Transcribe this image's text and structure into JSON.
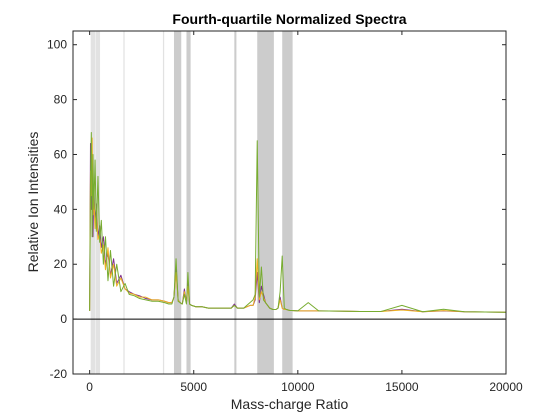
{
  "chart_data": {
    "type": "line",
    "title": "Fourth-quartile Normalized Spectra",
    "xlabel": "Mass-charge Ratio",
    "ylabel": "Relative Ion Intensities",
    "xlim": [
      -800,
      20000
    ],
    "ylim": [
      -20,
      105
    ],
    "xticks": [
      0,
      5000,
      10000,
      15000,
      20000
    ],
    "xtick_labels": [
      "0",
      "5000",
      "10000",
      "15000",
      "20000"
    ],
    "yticks": [
      -20,
      0,
      20,
      40,
      60,
      80,
      100
    ],
    "ytick_labels": [
      "-20",
      "0",
      "20",
      "40",
      "60",
      "80",
      "100"
    ],
    "grid": false,
    "zero_line": 0,
    "colors": {
      "axes": "#262626",
      "band_dark": "#cccccc",
      "band_light": "#e2e2e2"
    },
    "highlight_bands": [
      {
        "start": 50,
        "end": 270,
        "shade": "light"
      },
      {
        "start": 290,
        "end": 500,
        "shade": "light"
      },
      {
        "start": 1620,
        "end": 1680,
        "shade": "light"
      },
      {
        "start": 3520,
        "end": 3580,
        "shade": "light"
      },
      {
        "start": 4050,
        "end": 4400,
        "shade": "dark"
      },
      {
        "start": 4650,
        "end": 4850,
        "shade": "dark"
      },
      {
        "start": 6950,
        "end": 7050,
        "shade": "dark"
      },
      {
        "start": 8050,
        "end": 8850,
        "shade": "dark"
      },
      {
        "start": 9250,
        "end": 9750,
        "shade": "dark"
      }
    ],
    "series": [
      {
        "color": "#7e2f8e",
        "x": [
          0,
          40,
          80,
          120,
          160,
          200,
          260,
          320,
          400,
          480,
          560,
          660,
          760,
          880,
          1000,
          1150,
          1300,
          1500,
          1700,
          1900,
          2150,
          2400,
          2700,
          3000,
          3300,
          3600,
          3800,
          3950,
          4050,
          4150,
          4250,
          4350,
          4450,
          4550,
          4650,
          4720,
          4800,
          4900,
          5100,
          5400,
          5700,
          6000,
          6400,
          6800,
          6950,
          7100,
          7400,
          7700,
          7850,
          7950,
          8050,
          8150,
          8250,
          8350,
          8450,
          8550,
          8650,
          8800,
          8950,
          9050,
          9150,
          9250,
          9350,
          9450,
          9600,
          9800,
          10000,
          10500,
          11000,
          12000,
          13000,
          14000,
          15000,
          16000,
          17000,
          18000,
          19000,
          20000
        ],
        "values": [
          3,
          64,
          40,
          55,
          30,
          48,
          35,
          42,
          30,
          34,
          26,
          30,
          20,
          24,
          16,
          22,
          13,
          16,
          11,
          10,
          9,
          8.5,
          7.5,
          7,
          7,
          6.5,
          6,
          6,
          8,
          19,
          7,
          6,
          5.5,
          11,
          6,
          14,
          5.5,
          5,
          4.5,
          4.5,
          4,
          4,
          4,
          4,
          5.5,
          4,
          4,
          5,
          5,
          7,
          17,
          6,
          12,
          9,
          6,
          5,
          4,
          3.5,
          3.5,
          4,
          8,
          4,
          3.5,
          3.5,
          3.2,
          3.1,
          3,
          3,
          3,
          2.9,
          2.8,
          2.8,
          3.6,
          2.7,
          3,
          2.7,
          2.6,
          2.5
        ]
      },
      {
        "color": "#edb120",
        "x": [
          0,
          40,
          80,
          120,
          160,
          200,
          260,
          320,
          400,
          480,
          560,
          660,
          760,
          880,
          1000,
          1150,
          1300,
          1500,
          1700,
          1900,
          2150,
          2400,
          2700,
          3000,
          3300,
          3600,
          3800,
          3950,
          4050,
          4150,
          4250,
          4350,
          4450,
          4550,
          4650,
          4720,
          4800,
          4900,
          5100,
          5400,
          5700,
          6000,
          6400,
          6800,
          6950,
          7100,
          7400,
          7700,
          7850,
          7950,
          8050,
          8150,
          8250,
          8350,
          8450,
          8550,
          8650,
          8800,
          8950,
          9050,
          9150,
          9250,
          9350,
          9450,
          9600,
          9800,
          10000,
          10500,
          11000,
          12000,
          13000,
          14000,
          15000,
          16000,
          17000,
          18000,
          19000,
          20000
        ],
        "values": [
          3,
          54,
          45,
          66,
          38,
          46,
          33,
          40,
          29,
          31,
          24,
          27,
          18,
          26,
          15,
          20,
          12,
          15,
          11,
          9.5,
          9,
          8,
          8,
          7,
          7,
          6.5,
          6,
          6,
          8,
          17,
          7,
          6,
          5.5,
          10,
          6,
          12,
          5.5,
          5,
          4.5,
          4.5,
          4,
          4,
          4,
          4,
          5,
          4,
          4,
          5,
          5,
          8,
          22,
          7,
          10,
          8,
          6,
          5,
          4,
          3.5,
          3.5,
          4,
          7,
          4,
          3.5,
          3.5,
          3.2,
          3.1,
          3,
          3,
          3,
          2.9,
          2.8,
          2.8,
          3.3,
          2.7,
          3.1,
          2.7,
          2.6,
          2.5
        ]
      },
      {
        "color": "#77ac30",
        "x": [
          0,
          40,
          80,
          120,
          160,
          200,
          260,
          320,
          400,
          480,
          560,
          660,
          760,
          880,
          1000,
          1150,
          1300,
          1500,
          1700,
          1900,
          2150,
          2400,
          2700,
          3000,
          3300,
          3600,
          3800,
          3950,
          4050,
          4150,
          4250,
          4350,
          4450,
          4550,
          4650,
          4720,
          4800,
          4900,
          5100,
          5400,
          5700,
          6000,
          6400,
          6800,
          6950,
          7100,
          7400,
          7700,
          7850,
          7950,
          8050,
          8150,
          8250,
          8350,
          8450,
          8550,
          8650,
          8800,
          8950,
          9050,
          9150,
          9250,
          9350,
          9450,
          9600,
          9800,
          10000,
          10500,
          11000,
          12000,
          13000,
          14000,
          15000,
          16000,
          17000,
          18000,
          19000,
          20000
        ],
        "values": [
          3,
          50,
          68,
          30,
          60,
          40,
          58,
          32,
          52,
          28,
          36,
          20,
          30,
          14,
          25,
          12,
          20,
          10,
          13,
          9,
          8.5,
          7.5,
          7,
          6.5,
          6.5,
          6,
          5.5,
          5.5,
          8,
          22,
          6.5,
          6,
          5.5,
          9,
          5.5,
          17,
          5.5,
          5,
          4.5,
          4.5,
          4,
          4,
          4,
          4,
          5,
          4,
          4,
          6,
          7,
          9,
          65,
          8,
          19,
          7,
          6,
          5,
          4,
          3.5,
          3.5,
          4,
          10,
          23,
          4,
          3.5,
          3.2,
          3.1,
          3,
          6,
          3,
          2.9,
          2.8,
          2.8,
          5,
          2.7,
          3.6,
          2.7,
          2.6,
          2.5
        ]
      }
    ]
  }
}
